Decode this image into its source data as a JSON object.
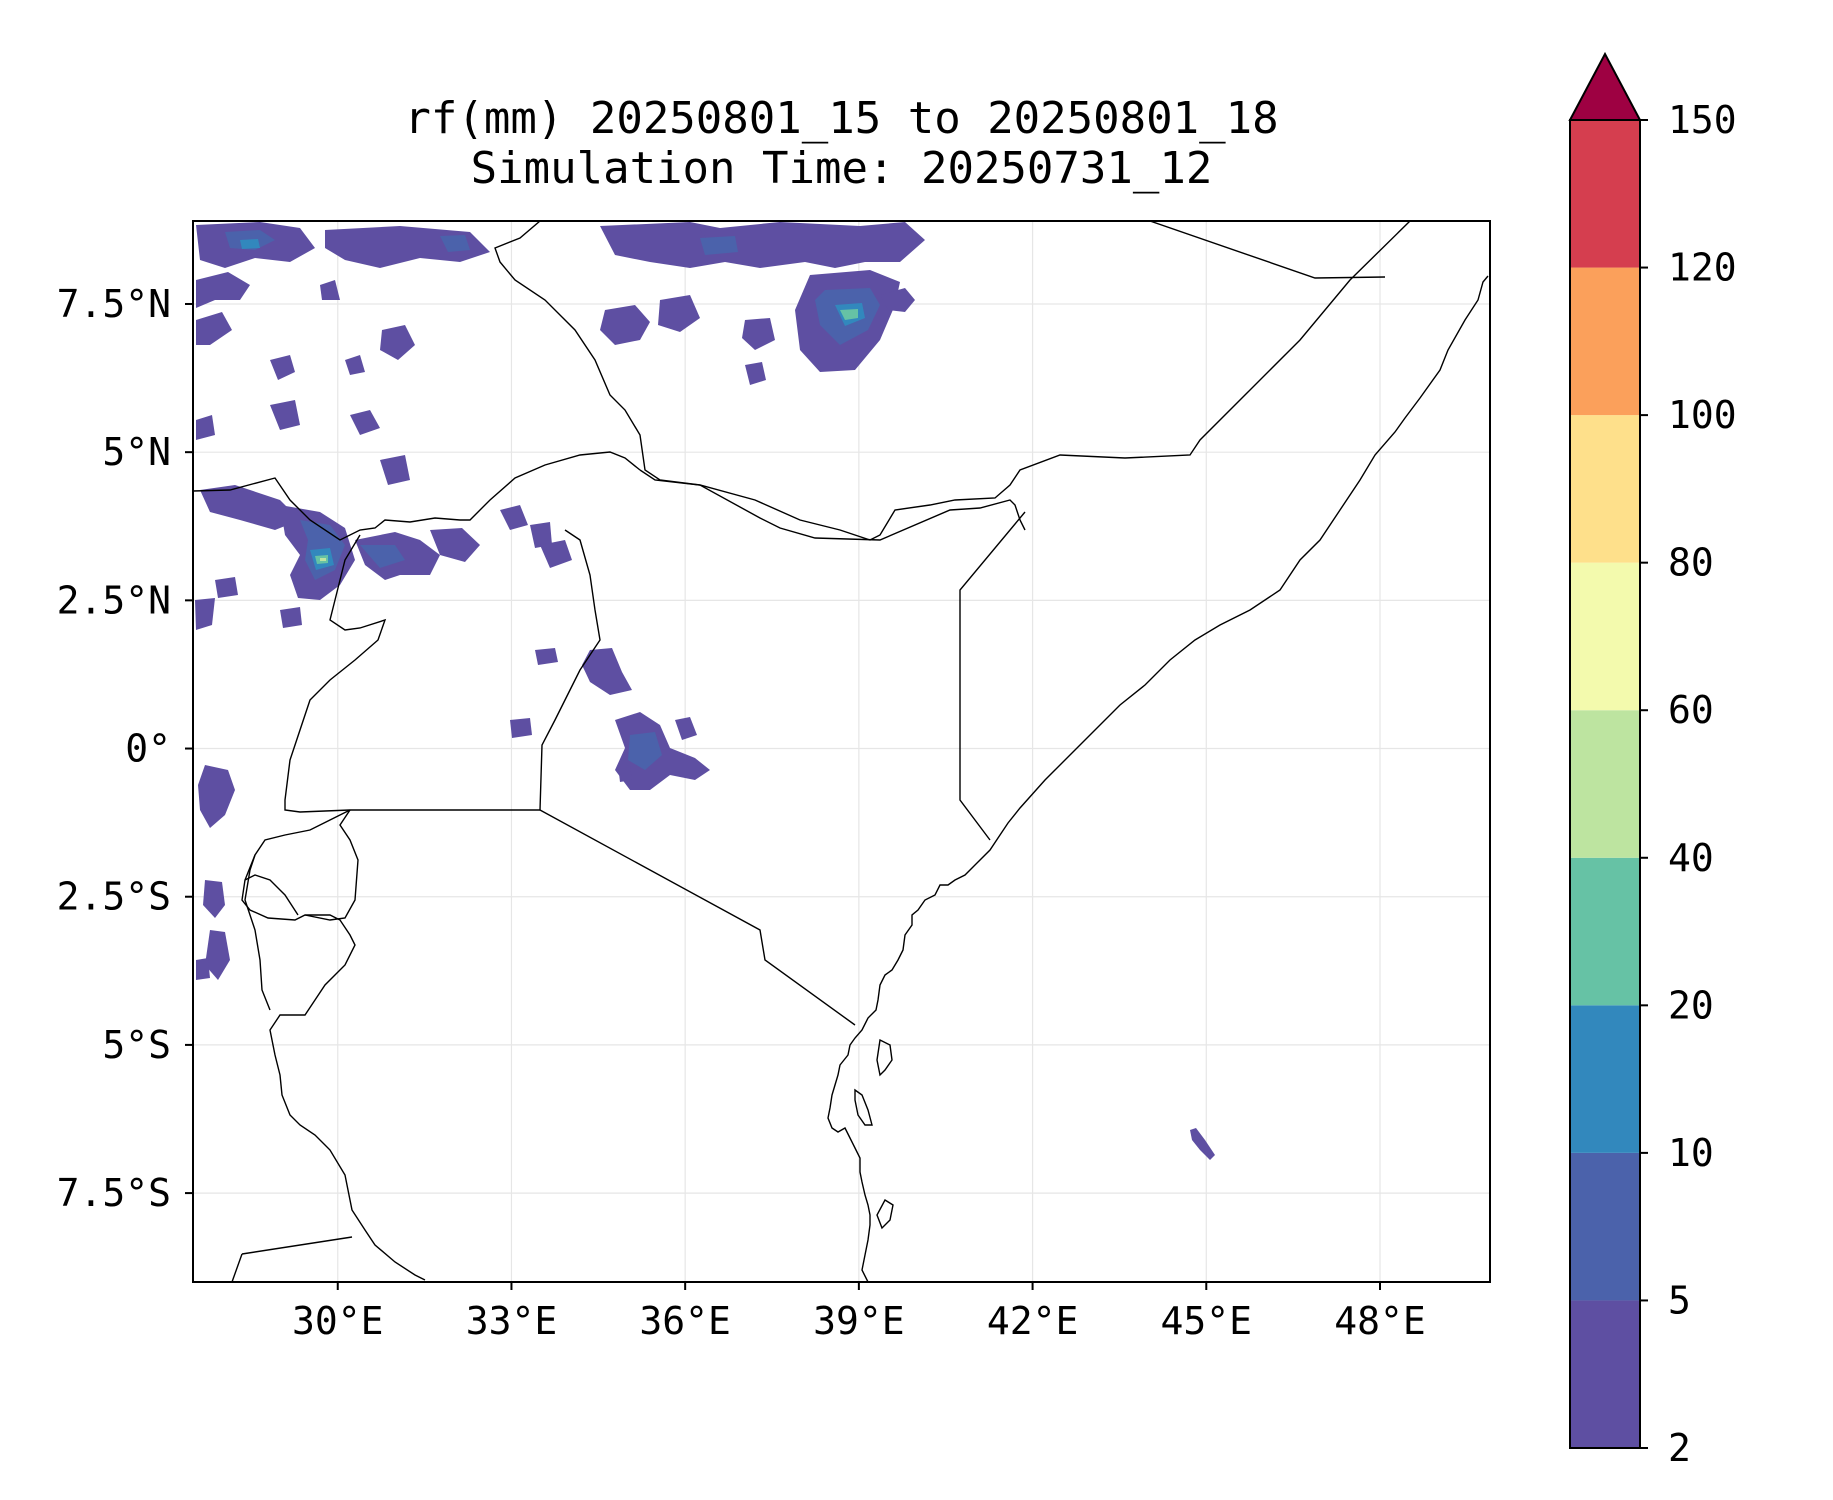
{
  "title": {
    "line1": "rf(mm) 20250801_15 to 20250801_18",
    "line2": "Simulation Time: 20250731_12"
  },
  "map": {
    "variable": "rf(mm)",
    "lon_range": [
      27.5,
      49.9
    ],
    "lat_range": [
      -9.0,
      8.9
    ],
    "lon_ticks": [
      {
        "value": 30,
        "label": "30°E"
      },
      {
        "value": 33,
        "label": "33°E"
      },
      {
        "value": 36,
        "label": "36°E"
      },
      {
        "value": 39,
        "label": "39°E"
      },
      {
        "value": 42,
        "label": "42°E"
      },
      {
        "value": 45,
        "label": "45°E"
      },
      {
        "value": 48,
        "label": "48°E"
      }
    ],
    "lat_ticks": [
      {
        "value": 7.5,
        "label": "7.5°N"
      },
      {
        "value": 5,
        "label": "5°N"
      },
      {
        "value": 2.5,
        "label": "2.5°N"
      },
      {
        "value": 0,
        "label": "0°"
      },
      {
        "value": -2.5,
        "label": "2.5°S"
      },
      {
        "value": -5,
        "label": "5°S"
      },
      {
        "value": -7.5,
        "label": "7.5°S"
      }
    ],
    "gridlines": true
  },
  "colorbar": {
    "extend": "max",
    "levels": [
      {
        "label": "2",
        "value": 2,
        "color": "#5e4fa2"
      },
      {
        "label": "5",
        "value": 5,
        "color": "#4b62ab"
      },
      {
        "label": "10",
        "value": 10,
        "color": "#3288bd"
      },
      {
        "label": "20",
        "value": 20,
        "color": "#66c2a5"
      },
      {
        "label": "40",
        "value": 40,
        "color": "#bde4a0"
      },
      {
        "label": "60",
        "value": 60,
        "color": "#f3faad"
      },
      {
        "label": "80",
        "value": 80,
        "color": "#fee08b"
      },
      {
        "label": "100",
        "value": 100,
        "color": "#fba05b"
      },
      {
        "label": "120",
        "value": 120,
        "color": "#d53e4f"
      },
      {
        "label": "150",
        "value": 150,
        "color": "#9e0142"
      }
    ]
  }
}
